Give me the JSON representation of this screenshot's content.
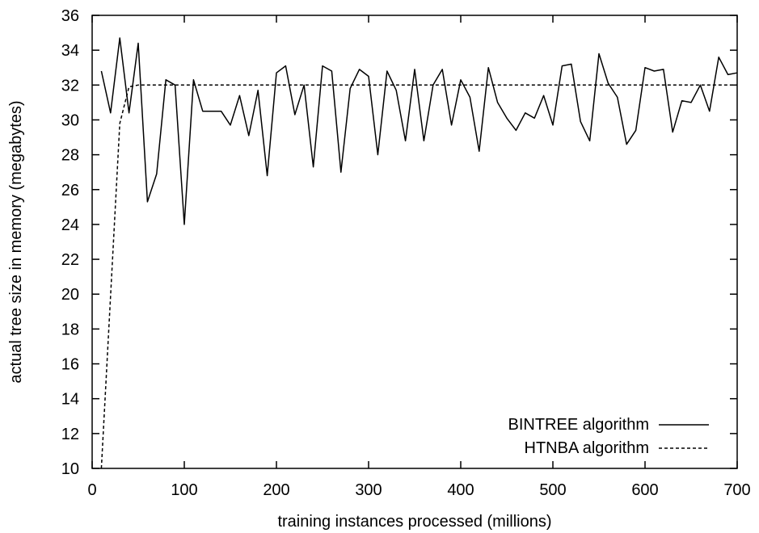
{
  "chart_data": {
    "type": "line",
    "xlabel": "training instances processed (millions)",
    "ylabel": "actual tree size in memory (megabytes)",
    "xlim": [
      0,
      700
    ],
    "ylim": [
      10,
      36
    ],
    "xticks": [
      0,
      100,
      200,
      300,
      400,
      500,
      600,
      700
    ],
    "yticks": [
      10,
      12,
      14,
      16,
      18,
      20,
      22,
      24,
      26,
      28,
      30,
      32,
      34,
      36
    ],
    "grid": false,
    "legend_position": "bottom-right",
    "series": [
      {
        "name": "BINTREE algorithm",
        "style": "solid",
        "x": [
          10,
          20,
          30,
          40,
          50,
          60,
          70,
          80,
          90,
          100,
          110,
          120,
          130,
          140,
          150,
          160,
          170,
          180,
          190,
          200,
          210,
          220,
          230,
          240,
          250,
          260,
          270,
          280,
          290,
          300,
          310,
          320,
          330,
          340,
          350,
          360,
          370,
          380,
          390,
          400,
          410,
          420,
          430,
          440,
          450,
          460,
          470,
          480,
          490,
          500,
          510,
          520,
          530,
          540,
          550,
          560,
          570,
          580,
          590,
          600,
          610,
          620,
          630,
          640,
          650,
          660,
          670,
          680,
          690,
          700
        ],
        "y": [
          32.8,
          30.4,
          34.7,
          30.4,
          34.4,
          25.3,
          26.9,
          32.3,
          32.0,
          24.0,
          32.3,
          30.5,
          30.5,
          30.5,
          29.7,
          31.4,
          29.1,
          31.7,
          26.8,
          32.7,
          33.1,
          30.3,
          32.0,
          27.3,
          33.1,
          32.8,
          27.0,
          31.8,
          32.9,
          32.5,
          28.0,
          32.8,
          31.7,
          28.8,
          32.9,
          28.8,
          32.0,
          32.9,
          29.7,
          32.3,
          31.3,
          28.2,
          33.0,
          31.0,
          30.1,
          29.4,
          30.4,
          30.1,
          31.4,
          29.7,
          33.1,
          33.2,
          29.9,
          28.8,
          33.8,
          32.1,
          31.3,
          28.6,
          29.4,
          33.0,
          32.8,
          32.9,
          29.3,
          31.1,
          31.0,
          32.0,
          30.5,
          33.6,
          32.6,
          32.7
        ]
      },
      {
        "name": "HTNBA algorithm",
        "style": "dashed",
        "x": [
          10,
          20,
          30,
          40,
          50,
          60,
          70,
          80,
          90,
          100,
          150,
          200,
          250,
          300,
          350,
          400,
          450,
          500,
          550,
          600,
          650,
          700
        ],
        "y": [
          10.0,
          19.9,
          29.8,
          31.9,
          32.0,
          32.0,
          32.0,
          32.0,
          32.0,
          32.0,
          32.0,
          32.0,
          32.0,
          32.0,
          32.0,
          32.0,
          32.0,
          32.0,
          32.0,
          32.0,
          32.0,
          32.0
        ]
      }
    ]
  }
}
